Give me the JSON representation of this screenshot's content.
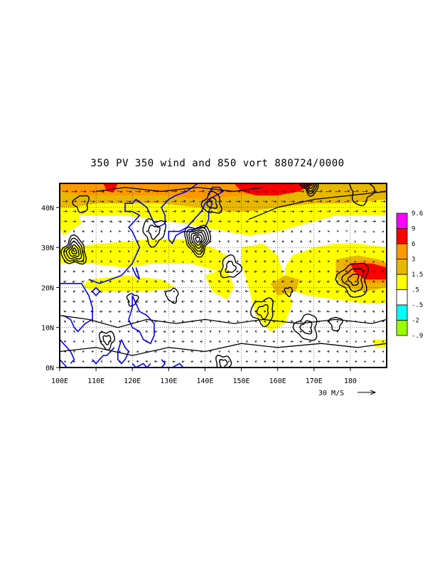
{
  "title": "350 PV 350 wind and 850 vort 880724/0000",
  "map": {
    "lon_range": [
      100,
      190
    ],
    "lat_range": [
      0,
      46
    ],
    "lon_ticks": [
      {
        "value": 100,
        "label": "100E"
      },
      {
        "value": 110,
        "label": "110E"
      },
      {
        "value": 120,
        "label": "120E"
      },
      {
        "value": 130,
        "label": "130E"
      },
      {
        "value": 140,
        "label": "140E"
      },
      {
        "value": 150,
        "label": "150E"
      },
      {
        "value": 160,
        "label": "160E"
      },
      {
        "value": 170,
        "label": "170E"
      },
      {
        "value": 180,
        "label": "180"
      }
    ],
    "lat_ticks": [
      {
        "value": 0,
        "label": "0N"
      },
      {
        "value": 10,
        "label": "10N"
      },
      {
        "value": 20,
        "label": "20N"
      },
      {
        "value": 30,
        "label": "30N"
      },
      {
        "value": 40,
        "label": "40N"
      }
    ],
    "coastline_color": "#0000ff",
    "contour_color": "#000000",
    "grid": true
  },
  "vector_reference": {
    "label": "30 M/S",
    "speed": 30
  },
  "colorbar": {
    "levels": [
      {
        "label": "9.6",
        "color": "#ff00ff"
      },
      {
        "label": "9",
        "color": "#ff0000"
      },
      {
        "label": "6",
        "color": "#ff9900"
      },
      {
        "label": "3",
        "color": "#e8b800"
      },
      {
        "label": "1.5",
        "color": "#ffff00"
      },
      {
        "label": ".5",
        "color": "#ffffff"
      },
      {
        "label": "-.5",
        "color": "#00ffff"
      },
      {
        "label": "-2",
        "color": "#99ff00"
      },
      {
        "label": "-.9",
        "color": null
      }
    ]
  }
}
